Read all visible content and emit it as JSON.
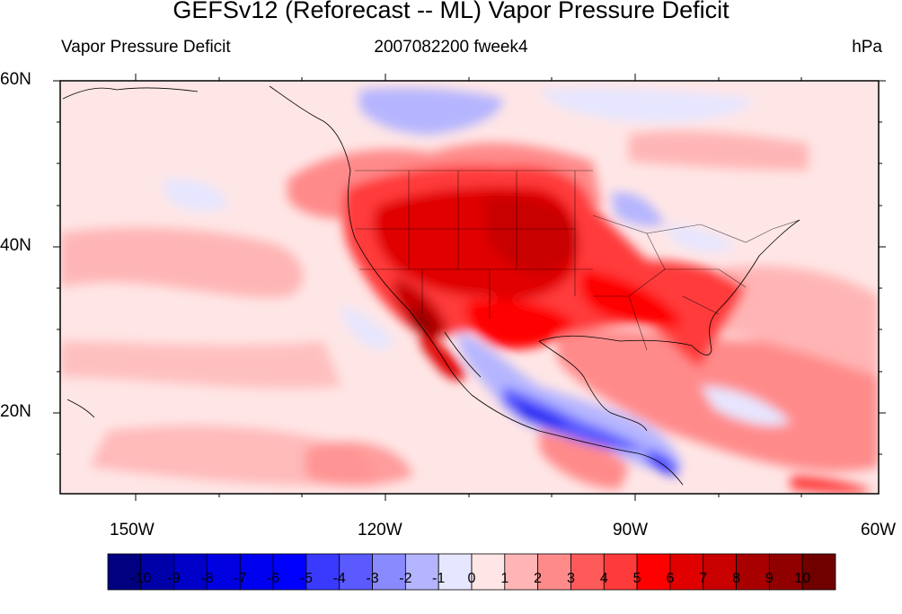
{
  "title": "GEFSv12 (Reforecast -- ML) Vapor Pressure Deficit",
  "left_label": "Vapor Pressure Deficit",
  "center_label": "2007082200 fweek4",
  "right_label": "hPa",
  "lat_labels": [
    "60N",
    "40N",
    "20N"
  ],
  "lon_labels": [
    "150W",
    "120W",
    "90W",
    "60W"
  ],
  "colorbar": {
    "labels": [
      "-10",
      "-9",
      "-8",
      "-7",
      "-6",
      "-5",
      "-4",
      "-3",
      "-2",
      "-1",
      "0",
      "1",
      "2",
      "3",
      "4",
      "5",
      "6",
      "7",
      "8",
      "9",
      "10"
    ],
    "colors": [
      "#000080",
      "#0000a8",
      "#0000c8",
      "#0000e0",
      "#0000f0",
      "#0000ff",
      "#3a3aff",
      "#5a5aff",
      "#8a8aff",
      "#b5b5ff",
      "#e6e6ff",
      "#ffe6e6",
      "#ffb5b5",
      "#ff8a8a",
      "#ff5a5a",
      "#ff3a3a",
      "#ff0000",
      "#e00000",
      "#c80000",
      "#a80000",
      "#900000",
      "#700000"
    ]
  },
  "colors": {
    "background_ocean": "#ffe6e6",
    "warm_strong": "#e00000",
    "cool_strong": "#0000c8",
    "frame": "#000000"
  }
}
